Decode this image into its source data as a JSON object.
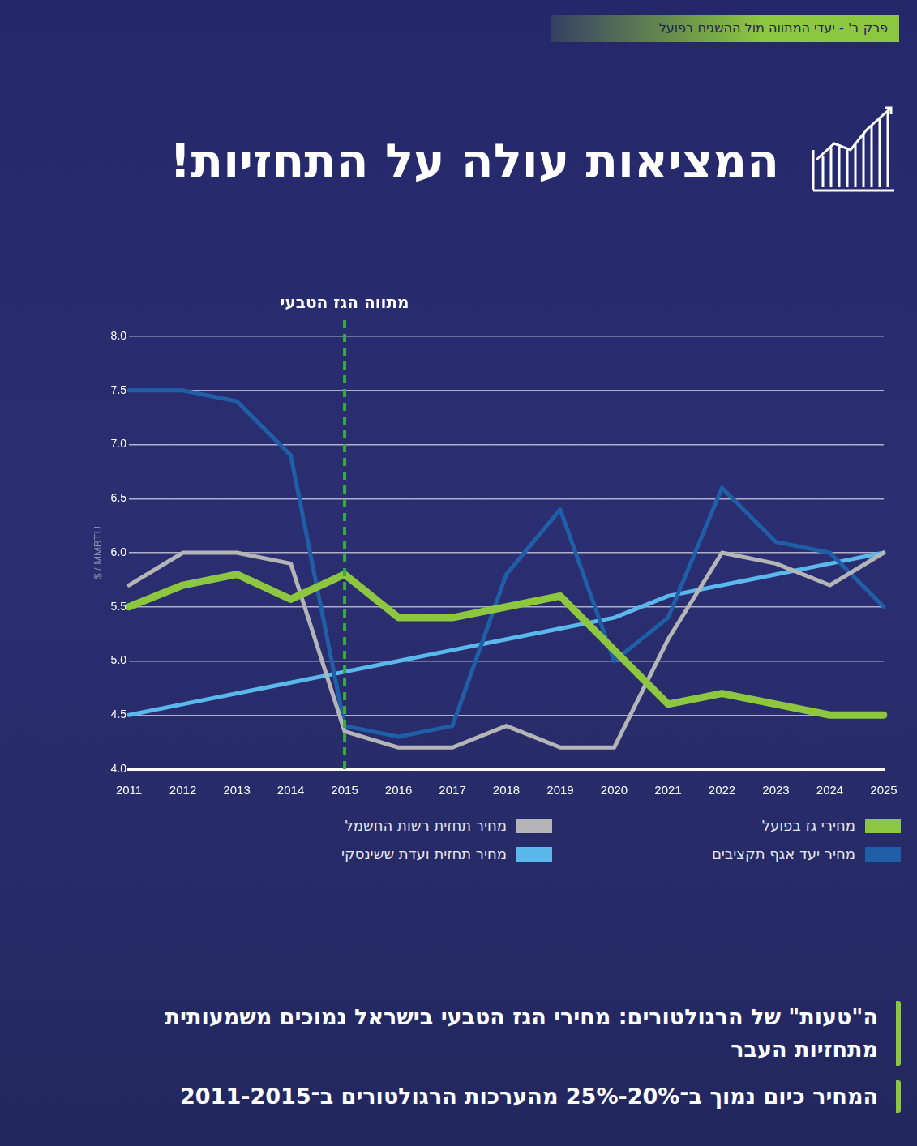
{
  "header": "פרק ב' - יעדי המתווה מול ההשגים בפועל",
  "chart_data": {
    "type": "line",
    "title": "המציאות עולה על התחזיות!",
    "y_label": "$ / MMBTU",
    "categories": [
      "2011",
      "2012",
      "2013",
      "2014",
      "2015",
      "2016",
      "2017",
      "2018",
      "2019",
      "2020",
      "2021",
      "2022",
      "2023",
      "2024",
      "2025"
    ],
    "series": [
      {
        "name": "מחירי גז בפועל",
        "color": "#8dc63f",
        "values": [
          5.5,
          5.7,
          5.8,
          5.57,
          5.8,
          5.4,
          5.4,
          5.5,
          5.6,
          5.1,
          4.6,
          4.7,
          4.6,
          4.5,
          4.5
        ]
      },
      {
        "name": "מחיר תחזית רשות החשמל",
        "color": "#b5b5b8",
        "values": [
          5.7,
          6.0,
          6.0,
          5.9,
          4.35,
          4.2,
          4.2,
          4.4,
          4.2,
          4.2,
          5.2,
          6.0,
          5.9,
          5.7,
          6.0
        ]
      },
      {
        "name": "מחיר יעד אגף תקציבים",
        "color": "#1f5fa8",
        "values": [
          7.5,
          7.5,
          7.4,
          6.9,
          4.4,
          4.3,
          4.4,
          5.8,
          6.4,
          5.0,
          5.4,
          6.6,
          6.1,
          6.0,
          5.5
        ]
      },
      {
        "name": "מחיר תחזית ועדת ששינסקי",
        "color": "#5bb8ec",
        "values": [
          4.5,
          4.6,
          4.7,
          4.8,
          4.9,
          5.0,
          5.1,
          5.2,
          5.3,
          5.4,
          5.6,
          5.7,
          5.8,
          5.9,
          6.0
        ]
      }
    ],
    "ylim": [
      4,
      8
    ],
    "yticks": [
      {
        "value": 4,
        "label": "4.0"
      },
      4.5,
      {
        "value": 5,
        "label": "5.0"
      },
      5.5,
      {
        "value": 6,
        "label": "6.0"
      },
      6.5,
      {
        "value": 7,
        "label": "7.0"
      },
      7.5,
      {
        "value": 8,
        "label": "8.0"
      }
    ],
    "grid": true,
    "legend": "bottom",
    "annotation": {
      "x": "2015",
      "label": "מתווה הגז הטבעי",
      "color": "#3aa845"
    }
  },
  "notes": [
    "ה\"טעות\" של הרגולטורים: מחירי הגז הטבעי בישראל נמוכים משמעותית מתחזיות העבר",
    "המחיר כיום נמוך ב־20%-25% מהערכות הרגולטורים ב־2011-2015"
  ]
}
